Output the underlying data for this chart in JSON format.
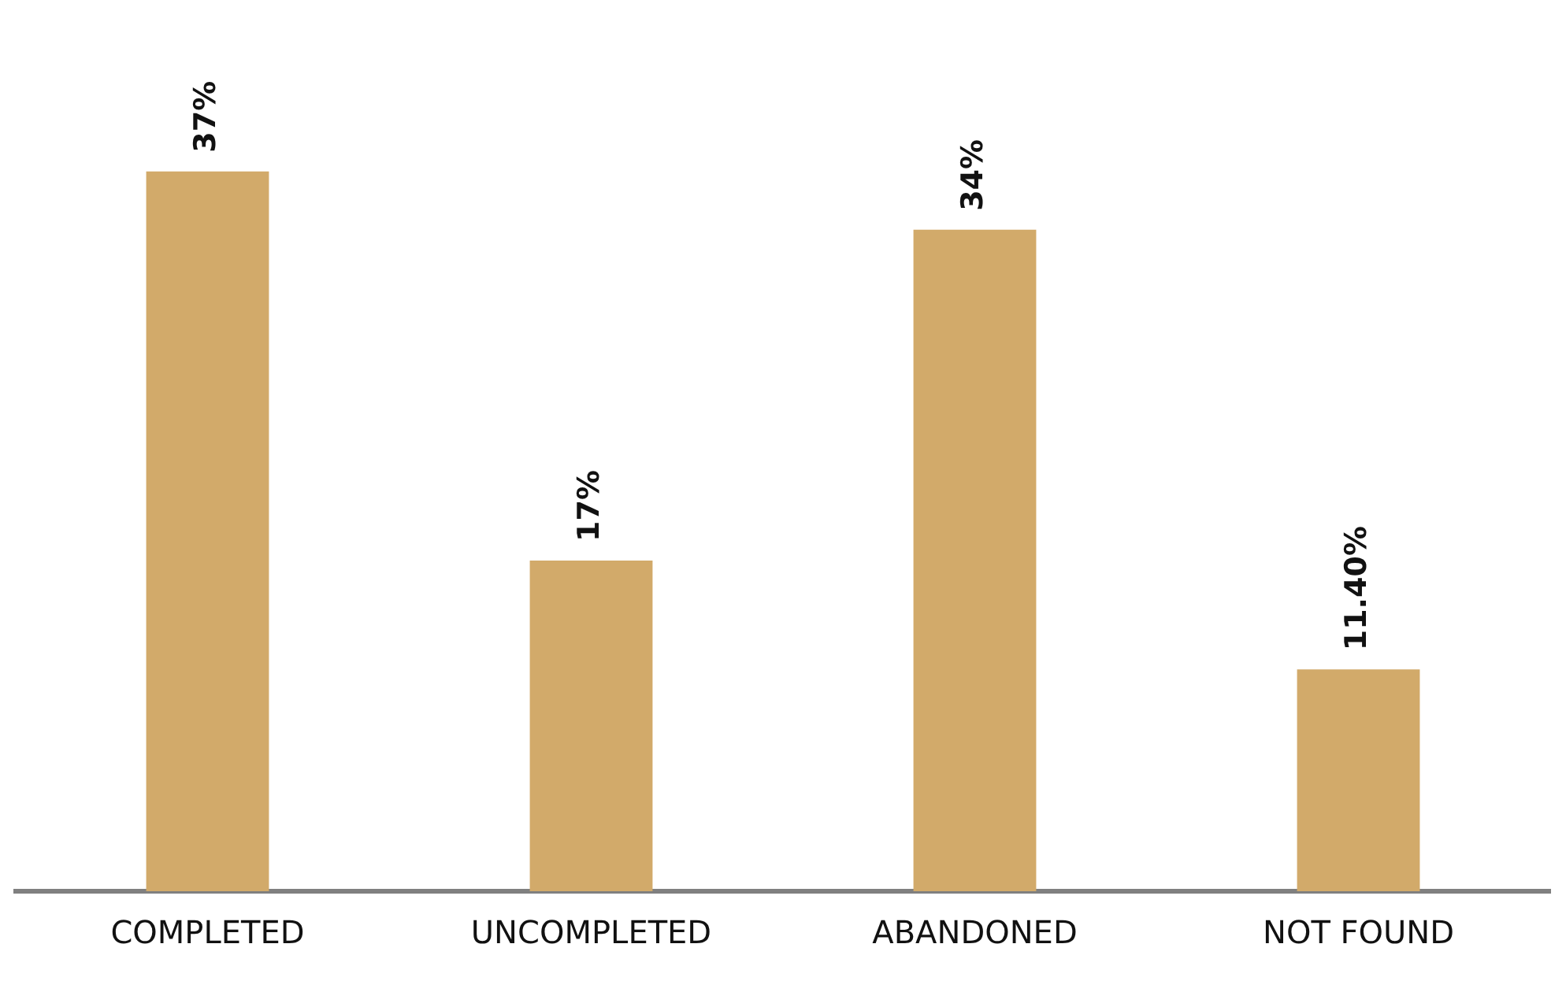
{
  "chart_data": {
    "type": "bar",
    "categories": [
      "COMPLETED",
      "UNCOMPLETED",
      "ABANDONED",
      "NOT FOUND"
    ],
    "values": [
      37,
      17,
      34,
      11.4
    ],
    "value_labels": [
      "37%",
      "17%",
      "34%",
      "11.40%"
    ],
    "color": "#d2aa6a",
    "grid": false,
    "legend": false
  }
}
